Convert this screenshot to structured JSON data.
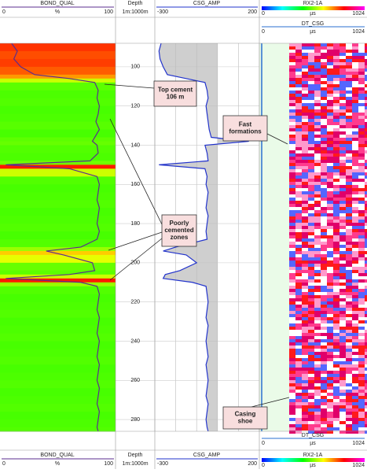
{
  "chart_data": {
    "type": "well_log",
    "depth_track": {
      "name": "Depth",
      "scale": "1m:1000m",
      "ylim": [
        88,
        286
      ],
      "yticks": [
        100,
        120,
        140,
        160,
        180,
        200,
        220,
        240,
        260,
        280
      ]
    },
    "depth": [
      88,
      92,
      96,
      100,
      104,
      106,
      108,
      112,
      116,
      120,
      124,
      128,
      132,
      136,
      138,
      140,
      144,
      148,
      150,
      152,
      156,
      160,
      164,
      168,
      172,
      176,
      180,
      184,
      188,
      192,
      194,
      196,
      200,
      204,
      206,
      208,
      210,
      212,
      216,
      220,
      224,
      228,
      232,
      236,
      240,
      244,
      248,
      252,
      256,
      260,
      264,
      268,
      272,
      276,
      280,
      284,
      286
    ],
    "tracks": [
      {
        "name": "BOND_QUAL",
        "unit": "%",
        "xlim": [
          0,
          100
        ],
        "color": "#5b2c8f",
        "values": [
          10,
          15,
          12,
          18,
          30,
          60,
          82,
          85,
          84,
          86,
          85,
          83,
          86,
          82,
          80,
          84,
          85,
          78,
          5,
          60,
          84,
          86,
          85,
          84,
          86,
          85,
          84,
          86,
          84,
          70,
          40,
          55,
          80,
          82,
          60,
          5,
          70,
          84,
          86,
          85,
          84,
          86,
          85,
          84,
          86,
          85,
          84,
          86,
          85,
          84,
          86,
          85,
          84,
          86,
          85,
          84,
          85
        ]
      },
      {
        "name": "CSG_AMP",
        "xlim": [
          -300,
          200
        ],
        "color": "#2233cc",
        "values": [
          -270,
          -280,
          -275,
          -260,
          -240,
          -150,
          -60,
          -50,
          -45,
          -55,
          -50,
          -45,
          -40,
          -30,
          150,
          -60,
          -50,
          -45,
          -280,
          -60,
          -50,
          -55,
          -45,
          -50,
          -55,
          -45,
          -50,
          -55,
          -50,
          -200,
          -260,
          -150,
          -100,
          -180,
          -250,
          -260,
          -120,
          -55,
          -50,
          -45,
          -50,
          -55,
          -45,
          -50,
          -55,
          -50,
          -45,
          -55,
          -50,
          -45,
          -50,
          -55,
          -45,
          -50,
          -55,
          -50,
          -45
        ]
      }
    ],
    "waveform_tracks": [
      {
        "name": "RX2-1A",
        "unit": "µs",
        "xlim": [
          0,
          1024
        ]
      },
      {
        "name": "DT_CSG",
        "unit": "µs",
        "xlim": [
          0,
          1024
        ]
      }
    ],
    "annotations": [
      {
        "lines": [
          "Top cement",
          "106 m"
        ]
      },
      {
        "lines": [
          "Fast",
          "formations"
        ]
      },
      {
        "lines": [
          "Poorly",
          "cemented",
          "zones"
        ]
      },
      {
        "lines": [
          "Casing",
          "shoe"
        ]
      }
    ]
  }
}
